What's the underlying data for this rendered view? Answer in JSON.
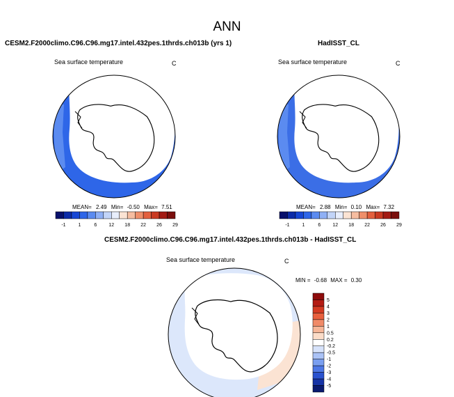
{
  "figure": {
    "title": "ANN"
  },
  "panels": [
    {
      "title": "CESM2.F2000climo.C96.C96.mg17.intel.432pes.1thrds.ch013b (yrs 1)",
      "variable": "Sea surface temperature",
      "units": "C",
      "stats": {
        "mean_label": "MEAN=",
        "mean": "2.49",
        "min_label": "Min=",
        "min": "-0.50",
        "max_label": "Max=",
        "max": "7.51"
      }
    },
    {
      "title": "HadISST_CL",
      "variable": "Sea surface temperature",
      "units": "C",
      "stats": {
        "mean_label": "MEAN=",
        "mean": "2.88",
        "min_label": "Min=",
        "min": "0.10",
        "max_label": "Max=",
        "max": "7.32"
      }
    },
    {
      "title": "CESM2.F2000climo.C96.C96.mg17.intel.432pes.1thrds.ch013b - HadISST_CL",
      "variable": "Sea surface temperature",
      "units": "C",
      "stats": {
        "min_label": "MIN =",
        "min": "-0.68",
        "max_label": "MAX =",
        "max": "0.30"
      }
    }
  ],
  "colorbar_abs": {
    "labels": [
      "-1",
      "1",
      "6",
      "12",
      "18",
      "22",
      "26",
      "29"
    ],
    "colors": [
      "#08106b",
      "#0c2ba8",
      "#1646d4",
      "#2e66e8",
      "#5b8bf0",
      "#8fb0f5",
      "#c2d4f8",
      "#e8eefc",
      "#fbe3d3",
      "#f6bda0",
      "#ef8f6a",
      "#e3603e",
      "#c93a22",
      "#a31b14",
      "#7a0e0c"
    ]
  },
  "colorbar_diff": {
    "labels": [
      "5",
      "4",
      "3",
      "2",
      "1",
      "0.5",
      "0.2",
      "-0.2",
      "-0.5",
      "-1",
      "-2",
      "-3",
      "-4",
      "-5"
    ],
    "colors": [
      "#8e0c0c",
      "#b41c14",
      "#d43a22",
      "#e8603e",
      "#f08a68",
      "#f6b698",
      "#fbdcc8",
      "#ffffff",
      "#d6e2fa",
      "#aac2f6",
      "#7a9ff0",
      "#4e78e6",
      "#2a52cf",
      "#1633a6",
      "#0a1a70"
    ]
  },
  "map_colors": {
    "ocean_model": "#2e66e8",
    "ocean_obs": "#3b6ee6",
    "coast_warm": "#5b8bf0",
    "diff_ocean": "#dce7fb",
    "diff_warm": "#fbe3d3",
    "land": "#ffffff"
  }
}
